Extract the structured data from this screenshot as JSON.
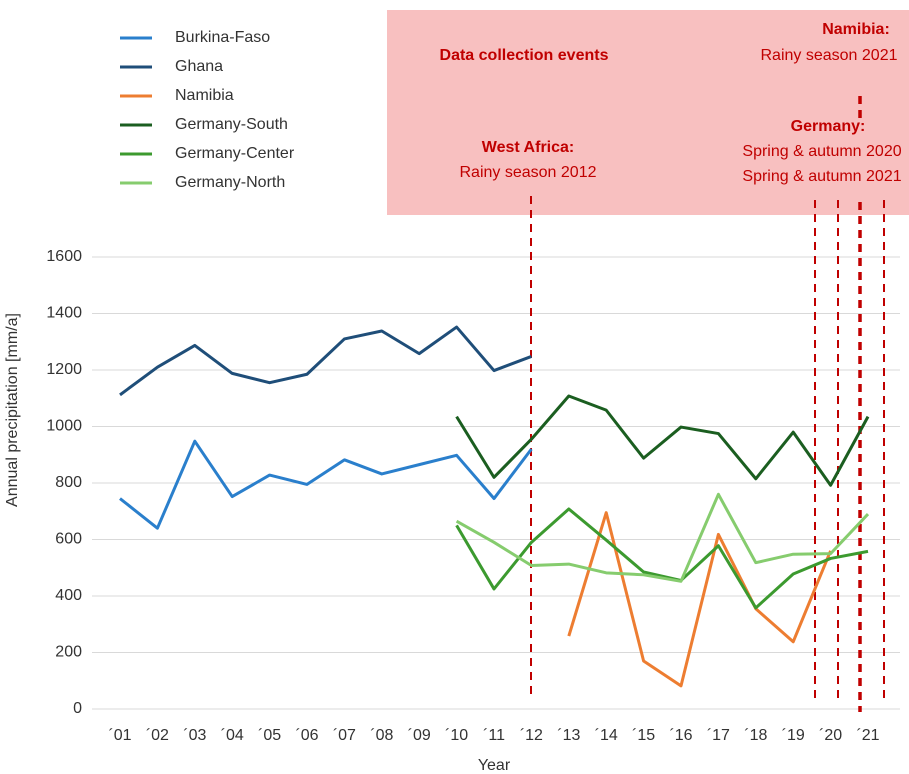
{
  "chart_data": {
    "type": "line",
    "y_label": "Annual precipitation [mm/a]",
    "x_label": "Year",
    "categories": [
      "´01",
      "´02",
      "´03",
      "´04",
      "´05",
      "´06",
      "´07",
      "´08",
      "´09",
      "´10",
      "´11",
      "´12",
      "´13",
      "´14",
      "´15",
      "´16",
      "´17",
      "´18",
      "´19",
      "´20",
      "´21"
    ],
    "ylim": [
      0,
      1600
    ],
    "yticks": [
      0,
      200,
      400,
      600,
      800,
      1000,
      1200,
      1400,
      1600
    ],
    "grid": true,
    "legend": "top-left",
    "series": [
      {
        "name": "Burkina-Faso",
        "color": "#2a7fcc",
        "values": [
          745,
          640,
          948,
          752,
          828,
          795,
          882,
          832,
          865,
          898,
          745,
          920,
          null,
          null,
          null,
          null,
          null,
          null,
          null,
          null,
          null
        ]
      },
      {
        "name": "Ghana",
        "color": "#1f4e79",
        "values": [
          1112,
          1210,
          1287,
          1188,
          1155,
          1185,
          1310,
          1338,
          1258,
          1352,
          1198,
          1248,
          null,
          null,
          null,
          null,
          null,
          null,
          null,
          null,
          null
        ]
      },
      {
        "name": "Namibia",
        "color": "#ed7d31",
        "values": [
          null,
          null,
          null,
          null,
          null,
          null,
          null,
          null,
          null,
          null,
          null,
          null,
          258,
          695,
          170,
          82,
          618,
          355,
          238,
          560,
          null
        ]
      },
      {
        "name": "Germany-South",
        "color": "#1b5e20",
        "values": [
          null,
          null,
          null,
          null,
          null,
          null,
          null,
          null,
          null,
          1035,
          820,
          955,
          1108,
          1058,
          888,
          998,
          975,
          815,
          980,
          792,
          1035
        ]
      },
      {
        "name": "Germany-Center",
        "color": "#3c9a2f",
        "values": [
          null,
          null,
          null,
          null,
          null,
          null,
          null,
          null,
          null,
          650,
          425,
          590,
          708,
          598,
          485,
          455,
          578,
          358,
          478,
          533,
          558
        ]
      },
      {
        "name": "Germany-North",
        "color": "#86cc6e",
        "values": [
          null,
          null,
          null,
          null,
          null,
          null,
          null,
          null,
          null,
          665,
          590,
          508,
          513,
          482,
          475,
          452,
          760,
          518,
          548,
          550,
          690
        ]
      }
    ],
    "annotations": [
      "Data collection events",
      "West Africa:",
      "Rainy season 2012",
      "Namibia:",
      "Rainy season 2021",
      "Germany:",
      "Spring & autumn 2020",
      "Spring & autumn 2021"
    ]
  }
}
